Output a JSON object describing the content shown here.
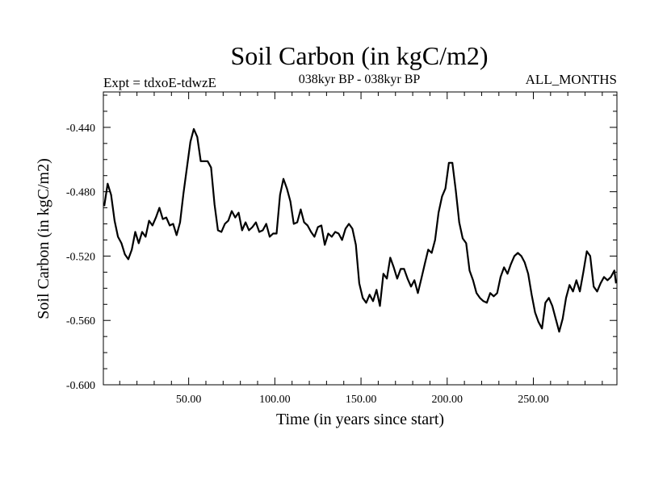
{
  "chart_data": {
    "type": "line",
    "title": "Soil Carbon (in kgC/m2)",
    "subtitle": "038kyr BP - 038kyr BP",
    "left_note": "Expt = tdxoE-tdwzE",
    "right_note": "ALL_MONTHS",
    "xlabel": "Time (in years since start)",
    "ylabel": "Soil Carbon (in kgC/m2)",
    "xlim": [
      0.5,
      298.5
    ],
    "ylim": [
      -0.6,
      -0.418
    ],
    "xticks": [
      50,
      100,
      150,
      200,
      250
    ],
    "xtick_labels": [
      "50.00",
      "100.00",
      "150.00",
      "200.00",
      "250.00"
    ],
    "yticks": [
      -0.44,
      -0.48,
      -0.52,
      -0.56,
      -0.6
    ],
    "ytick_labels": [
      "-0.440",
      "-0.480",
      "-0.520",
      "-0.560",
      "-0.600"
    ],
    "grid": false,
    "series": [
      {
        "color": "#000000",
        "x": [
          1,
          3,
          5,
          7,
          9,
          11,
          13,
          15,
          17,
          19,
          21,
          23,
          25,
          27,
          29,
          31,
          33,
          35,
          37,
          39,
          41,
          43,
          45,
          47,
          49,
          51,
          53,
          55,
          57,
          59,
          61,
          63,
          65,
          67,
          69,
          71,
          73,
          75,
          77,
          79,
          81,
          83,
          85,
          87,
          89,
          91,
          93,
          95,
          97,
          99,
          101,
          103,
          105,
          107,
          109,
          111,
          113,
          115,
          117,
          119,
          121,
          123,
          125,
          127,
          129,
          131,
          133,
          135,
          137,
          139,
          141,
          143,
          145,
          147,
          149,
          151,
          153,
          155,
          157,
          159,
          161,
          163,
          165,
          167,
          169,
          171,
          173,
          175,
          177,
          179,
          181,
          183,
          185,
          187,
          189,
          191,
          193,
          195,
          197,
          199,
          201,
          203,
          205,
          207,
          209,
          211,
          213,
          215,
          217,
          219,
          221,
          223,
          225,
          227,
          229,
          231,
          233,
          235,
          237,
          239,
          241,
          243,
          245,
          247,
          249,
          251,
          253,
          255,
          257,
          259,
          261,
          263,
          265,
          267,
          269,
          271,
          273,
          275,
          277,
          279,
          281,
          283,
          285,
          287,
          289,
          291,
          293,
          295,
          297,
          298
        ],
        "y": [
          -0.489,
          -0.475,
          -0.482,
          -0.498,
          -0.508,
          -0.512,
          -0.519,
          -0.522,
          -0.516,
          -0.505,
          -0.512,
          -0.505,
          -0.508,
          -0.498,
          -0.501,
          -0.496,
          -0.49,
          -0.497,
          -0.496,
          -0.501,
          -0.5,
          -0.507,
          -0.499,
          -0.481,
          -0.465,
          -0.449,
          -0.441,
          -0.446,
          -0.461,
          -0.461,
          -0.461,
          -0.465,
          -0.488,
          -0.504,
          -0.505,
          -0.5,
          -0.498,
          -0.492,
          -0.496,
          -0.493,
          -0.504,
          -0.499,
          -0.504,
          -0.502,
          -0.499,
          -0.505,
          -0.504,
          -0.5,
          -0.508,
          -0.506,
          -0.506,
          -0.482,
          -0.472,
          -0.478,
          -0.486,
          -0.5,
          -0.499,
          -0.491,
          -0.499,
          -0.501,
          -0.505,
          -0.508,
          -0.502,
          -0.501,
          -0.513,
          -0.506,
          -0.508,
          -0.505,
          -0.506,
          -0.51,
          -0.503,
          -0.5,
          -0.503,
          -0.513,
          -0.537,
          -0.546,
          -0.549,
          -0.544,
          -0.548,
          -0.541,
          -0.551,
          -0.531,
          -0.534,
          -0.521,
          -0.527,
          -0.534,
          -0.528,
          -0.528,
          -0.534,
          -0.539,
          -0.535,
          -0.543,
          -0.534,
          -0.525,
          -0.516,
          -0.518,
          -0.51,
          -0.493,
          -0.483,
          -0.478,
          -0.462,
          -0.462,
          -0.479,
          -0.499,
          -0.509,
          -0.512,
          -0.529,
          -0.535,
          -0.543,
          -0.546,
          -0.548,
          -0.549,
          -0.543,
          -0.545,
          -0.543,
          -0.533,
          -0.527,
          -0.531,
          -0.525,
          -0.52,
          -0.518,
          -0.52,
          -0.524,
          -0.531,
          -0.544,
          -0.555,
          -0.561,
          -0.565,
          -0.549,
          -0.546,
          -0.551,
          -0.559,
          -0.567,
          -0.559,
          -0.546,
          -0.538,
          -0.542,
          -0.535,
          -0.542,
          -0.53,
          -0.517,
          -0.52,
          -0.539,
          -0.542,
          -0.537,
          -0.533,
          -0.535,
          -0.533,
          -0.529,
          -0.537
        ]
      }
    ]
  }
}
